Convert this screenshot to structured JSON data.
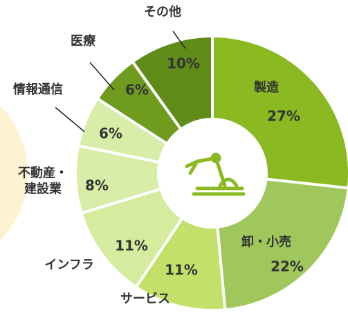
{
  "chart_data": {
    "type": "pie",
    "categories": [
      "製造",
      "卸・小売",
      "サービス",
      "インフラ",
      "不動産・\n建設業",
      "情報通信",
      "医療",
      "その他"
    ],
    "values": [
      27,
      22,
      11,
      11,
      8,
      6,
      6,
      10
    ],
    "value_labels": [
      "27%",
      "22%",
      "11%",
      "11%",
      "8%",
      "6%",
      "6%",
      "10%"
    ],
    "colors": [
      "#8ab922",
      "#a0c75c",
      "#c3e06a",
      "#d5eb9e",
      "#d8eda8",
      "#d8eda8",
      "#6f9b1f",
      "#5f8b19"
    ]
  }
}
